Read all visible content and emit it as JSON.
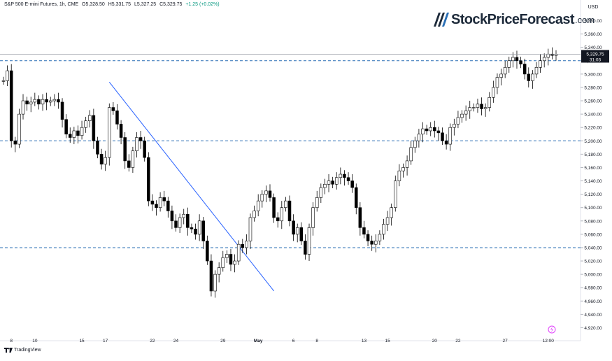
{
  "header": {
    "symbol": "S&P 500 E-mini Futures, 1h, CME",
    "open": "O5,328.50",
    "high": "H5,331.75",
    "low": "L5,327.25",
    "close": "C5,329.75",
    "change": "+1.25 (+0.02%)"
  },
  "brand": {
    "name": "StockPriceForecast",
    "tld": ".com"
  },
  "footer": {
    "platform": "TradingView"
  },
  "price_tag": {
    "price": "5,329.75",
    "countdown": "31:03"
  },
  "colors": {
    "candle": "#000000",
    "trendline": "#2962ff",
    "dashed_level": "#2a6fb5",
    "price_tag_bg": "#131722",
    "axis_text": "#131722"
  },
  "chart_data": {
    "type": "line",
    "style": "candlestick",
    "y_currency": "USD",
    "ylim": [
      4910,
      5390
    ],
    "y_ticks": [
      4920,
      4940,
      4960,
      4980,
      5000,
      5020,
      5040,
      5060,
      5080,
      5100,
      5120,
      5140,
      5160,
      5180,
      5200,
      5220,
      5240,
      5260,
      5280,
      5300,
      5320,
      5340,
      5360,
      5380
    ],
    "y_tick_labels": [
      "4,920.00",
      "4,940.00",
      "4,960.00",
      "4,980.00",
      "5,000.00",
      "5,020.00",
      "5,040.00",
      "5,060.00",
      "5,080.00",
      "5,100.00",
      "5,120.00",
      "5,140.00",
      "5,160.00",
      "5,180.00",
      "5,200.00",
      "5,220.00",
      "5,240.00",
      "5,260.00",
      "5,280.00",
      "5,300.00",
      "5,320.00",
      "5,340.00",
      "5,360.00",
      "5,380.00"
    ],
    "x_labels": [
      "8",
      "10",
      "15",
      "17",
      "22",
      "24",
      "29",
      "May",
      "6",
      "8",
      "13",
      "15",
      "20",
      "22",
      "27",
      "12:00"
    ],
    "x_label_index": [
      2,
      8,
      20,
      26,
      38,
      44,
      56,
      65,
      74,
      80,
      92,
      98,
      110,
      116,
      128,
      139
    ],
    "x_count": 142,
    "horizontal_levels": [
      5320,
      5200,
      5040
    ],
    "last_price": 5329.75,
    "trendline": {
      "start": {
        "index": 27,
        "price": 5288
      },
      "end": {
        "index": 69,
        "price": 4975
      }
    },
    "series": [
      {
        "values": [
          5290,
          5305,
          5200,
          5195,
          5240,
          5260,
          5255,
          5258,
          5262,
          5255,
          5262,
          5258,
          5260,
          5262,
          5258,
          5232,
          5210,
          5205,
          5215,
          5208,
          5220,
          5230,
          5238,
          5200,
          5180,
          5165,
          5175,
          5250,
          5245,
          5225,
          5205,
          5170,
          5160,
          5185,
          5205,
          5200,
          5175,
          5110,
          5105,
          5100,
          5115,
          5110,
          5095,
          5080,
          5070,
          5085,
          5090,
          5070,
          5068,
          5060,
          5080,
          5050,
          5020,
          4975,
          5000,
          5010,
          5025,
          5030,
          5015,
          5020,
          5045,
          5040,
          5050,
          5085,
          5095,
          5110,
          5120,
          5125,
          5115,
          5085,
          5080,
          5100,
          5110,
          5080,
          5060,
          5070,
          5050,
          5030,
          5070,
          5100,
          5115,
          5130,
          5135,
          5140,
          5135,
          5145,
          5150,
          5145,
          5140,
          5130,
          5100,
          5070,
          5060,
          5050,
          5045,
          5050,
          5060,
          5075,
          5085,
          5100,
          5140,
          5155,
          5160,
          5170,
          5190,
          5200,
          5210,
          5218,
          5215,
          5220,
          5215,
          5212,
          5200,
          5195,
          5220,
          5225,
          5235,
          5240,
          5245,
          5250,
          5250,
          5255,
          5248,
          5250,
          5265,
          5280,
          5295,
          5300,
          5310,
          5320,
          5325,
          5320,
          5315,
          5300,
          5290,
          5300,
          5310,
          5320,
          5325,
          5330,
          5328,
          5329.75
        ]
      }
    ]
  }
}
